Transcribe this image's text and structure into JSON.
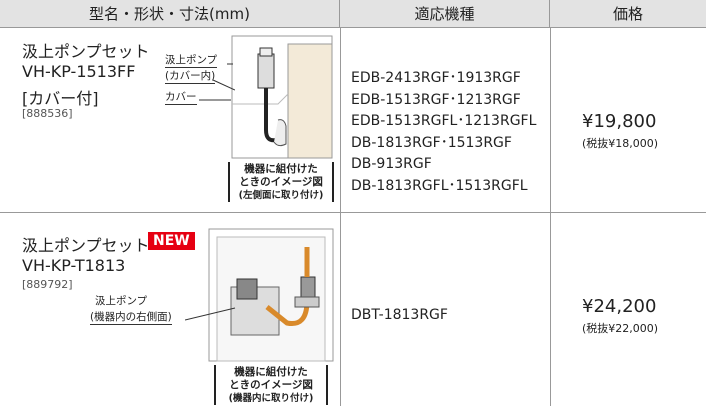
{
  "table": {
    "headers": [
      "型名・形状・寸法(mm)",
      "適応機種",
      "価格"
    ],
    "rows": [
      {
        "name": "汲上ポンプセット",
        "model": "VH-KP-1513FF",
        "note": "[カバー付]",
        "code": "[888536]",
        "callouts": [
          "汲上ポンプ",
          "(カバー内)",
          "カバー"
        ],
        "caption": [
          "機器に組付けた",
          "ときのイメージ図",
          "(左側面に取り付け)"
        ],
        "models": [
          "EDB-2413RGF･1913RGF",
          "EDB-1513RGF･1213RGF",
          "EDB-1513RGFL･1213RGFL",
          "DB-1813RGF･1513RGF",
          "DB-913RGF",
          "DB-1813RGFL･1513RGFL"
        ],
        "price": "¥19,800",
        "price_excl_tax": "(税抜¥18,000)"
      },
      {
        "name": "汲上ポンプセット",
        "badge": "NEW",
        "model": "VH-KP-T1813",
        "code": "[889792]",
        "callouts": [
          "汲上ポンプ",
          "(機器内の右側面)"
        ],
        "caption": [
          "機器に組付けた",
          "ときのイメージ図",
          "(機器内に取り付け)"
        ],
        "models": [
          "DBT-1813RGF"
        ],
        "price": "¥24,200",
        "price_excl_tax": "(税抜¥22,000)"
      }
    ]
  }
}
